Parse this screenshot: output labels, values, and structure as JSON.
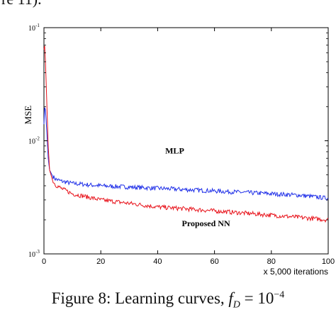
{
  "top_fragment": "re 11).",
  "caption": {
    "text": "Figure 8: Learning curves,",
    "formula_var": "f",
    "formula_sub": "D",
    "formula_rhs": "= 10",
    "formula_exp": "−4"
  },
  "chart_data": {
    "type": "line",
    "title": "",
    "xlabel": "x 5,000 iterations",
    "ylabel": "MSE",
    "xlim": [
      0,
      100
    ],
    "ylim": [
      0.001,
      0.1
    ],
    "yscale": "log",
    "xticks": [
      0,
      20,
      40,
      60,
      80,
      100
    ],
    "xtick_labels": [
      "0",
      "20",
      "40",
      "60",
      "80",
      "100"
    ],
    "ytick_labels": [
      {
        "base": "10",
        "exp": "-1"
      },
      {
        "base": "10",
        "exp": "-2"
      },
      {
        "base": "10",
        "exp": "-3"
      }
    ],
    "yticks": [
      0.1,
      0.01,
      0.001
    ],
    "grid": false,
    "annotations": [
      {
        "text": "MLP",
        "x": 46,
        "y": 0.0077
      },
      {
        "text": "Proposed NN",
        "x": 57,
        "y": 0.00175
      }
    ],
    "series": [
      {
        "name": "MLP",
        "color": "#1f2fe8",
        "x": [
          0,
          0.3,
          0.6,
          1,
          1.5,
          2,
          3,
          4,
          6,
          8,
          10,
          15,
          20,
          30,
          40,
          50,
          60,
          70,
          80,
          90,
          95,
          100
        ],
        "y": [
          0.014,
          0.021,
          0.018,
          0.012,
          0.007,
          0.0055,
          0.0049,
          0.0046,
          0.0044,
          0.0043,
          0.0042,
          0.0041,
          0.004,
          0.0039,
          0.0038,
          0.0037,
          0.0036,
          0.0035,
          0.0034,
          0.0033,
          0.0032,
          0.0031
        ]
      },
      {
        "name": "Proposed NN",
        "color": "#e8141c",
        "x": [
          0,
          0.3,
          0.6,
          1,
          1.5,
          2,
          3,
          4,
          6,
          8,
          10,
          15,
          20,
          30,
          40,
          50,
          60,
          70,
          80,
          90,
          95,
          100
        ],
        "y": [
          0.064,
          0.07,
          0.045,
          0.022,
          0.009,
          0.0055,
          0.0045,
          0.0041,
          0.0038,
          0.0036,
          0.0034,
          0.0032,
          0.003,
          0.0028,
          0.0026,
          0.0025,
          0.0024,
          0.0023,
          0.0022,
          0.0021,
          0.00205,
          0.002
        ]
      }
    ]
  }
}
